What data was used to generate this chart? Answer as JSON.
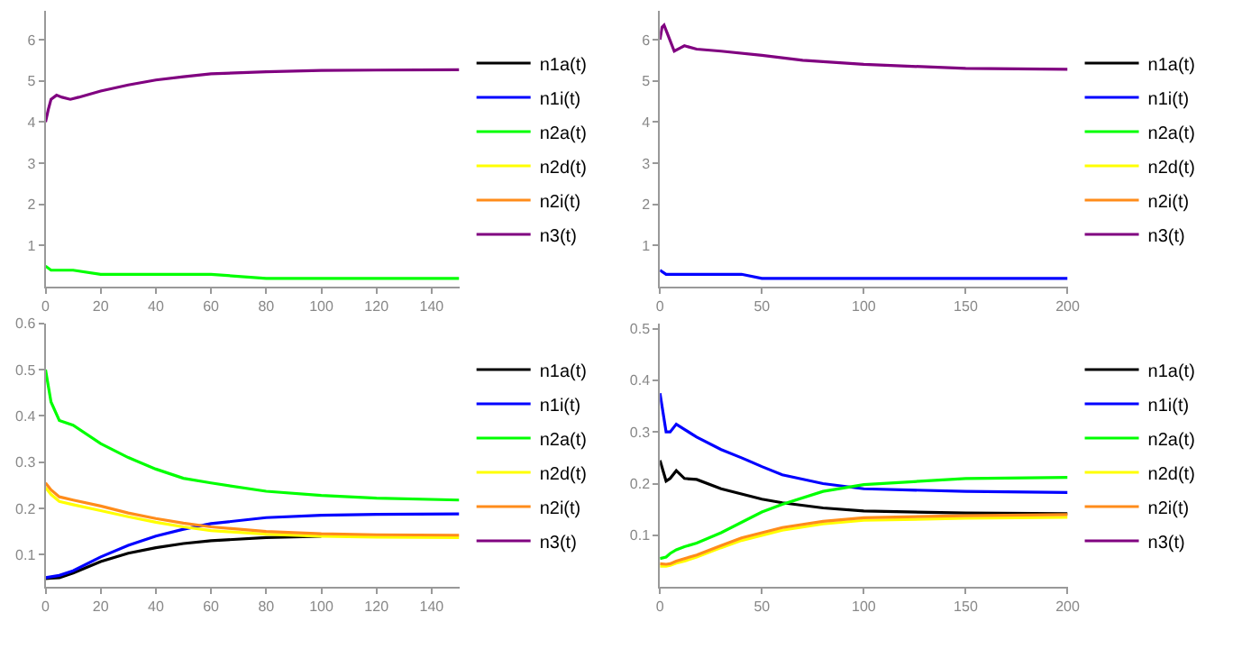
{
  "chart_data": [
    {
      "type": "line",
      "xlim": [
        0,
        150
      ],
      "xticks": [
        0,
        20,
        40,
        60,
        80,
        100,
        120,
        140
      ],
      "ylim": [
        0,
        6.7
      ],
      "yticks": [
        1,
        2,
        3,
        4,
        5,
        6
      ],
      "legend": "right",
      "line_style": "solid",
      "marker": "none",
      "x": [
        0,
        2,
        5,
        10,
        20,
        30,
        40,
        50,
        60,
        80,
        100,
        120,
        150
      ],
      "series": [
        {
          "name": "n1a(t)",
          "color": "#000000",
          "values": [
            null,
            null,
            null,
            null,
            null,
            null,
            null,
            null,
            null,
            null,
            null,
            null,
            null
          ]
        },
        {
          "name": "n1i(t)",
          "color": "#0000ff",
          "values": [
            null,
            null,
            null,
            null,
            null,
            null,
            null,
            null,
            null,
            null,
            null,
            null,
            null
          ]
        },
        {
          "name": "n2a(t)",
          "color": "#00ff00",
          "values": [
            0.5,
            0.4,
            0.4,
            0.4,
            0.3,
            0.3,
            0.3,
            0.3,
            0.3,
            0.2,
            0.2,
            0.2,
            0.2
          ]
        },
        {
          "name": "n2d(t)",
          "color": "#ffff00",
          "values": [
            null,
            null,
            null,
            null,
            null,
            null,
            null,
            null,
            null,
            null,
            null,
            null,
            null
          ]
        },
        {
          "name": "n2i(t)",
          "color": "#ff8c1a",
          "values": [
            null,
            null,
            null,
            null,
            null,
            null,
            null,
            null,
            null,
            null,
            null,
            null,
            null
          ]
        },
        {
          "name": "n3(t)",
          "color": "#800080",
          "x": [
            0,
            1,
            2,
            4,
            6,
            9,
            12,
            20,
            30,
            40,
            50,
            60,
            80,
            100,
            120,
            150
          ],
          "values": [
            4.0,
            4.3,
            4.55,
            4.65,
            4.6,
            4.55,
            4.6,
            4.75,
            4.9,
            5.02,
            5.1,
            5.17,
            5.22,
            5.25,
            5.26,
            5.27
          ]
        }
      ]
    },
    {
      "type": "line",
      "xlim": [
        0,
        200
      ],
      "xticks": [
        0,
        50,
        100,
        150,
        200
      ],
      "ylim": [
        0,
        6.7
      ],
      "yticks": [
        1,
        2,
        3,
        4,
        5,
        6
      ],
      "legend": "right",
      "line_style": "solid",
      "marker": "none",
      "x": [
        0,
        3,
        5,
        8,
        12,
        18,
        30,
        40,
        50,
        60,
        80,
        100,
        150,
        200
      ],
      "series": [
        {
          "name": "n1a(t)",
          "color": "#000000",
          "values": [
            null,
            null,
            null,
            null,
            null,
            null,
            null,
            null,
            null,
            null,
            null,
            null,
            null,
            null
          ]
        },
        {
          "name": "n1i(t)",
          "color": "#0000ff",
          "values": [
            0.4,
            0.3,
            0.3,
            0.3,
            0.3,
            0.3,
            0.3,
            0.3,
            0.2,
            0.2,
            0.2,
            0.2,
            0.2,
            0.2
          ]
        },
        {
          "name": "n2a(t)",
          "color": "#00ff00",
          "values": [
            null,
            null,
            null,
            null,
            null,
            null,
            null,
            null,
            null,
            null,
            null,
            null,
            null,
            null
          ]
        },
        {
          "name": "n2d(t)",
          "color": "#ffff00",
          "values": [
            null,
            null,
            null,
            null,
            null,
            null,
            null,
            null,
            null,
            null,
            null,
            null,
            null,
            null
          ]
        },
        {
          "name": "n2i(t)",
          "color": "#ff8c1a",
          "values": [
            null,
            null,
            null,
            null,
            null,
            null,
            null,
            null,
            null,
            null,
            null,
            null,
            null,
            null
          ]
        },
        {
          "name": "n3(t)",
          "color": "#800080",
          "x": [
            0,
            1,
            2,
            4,
            7,
            10,
            12,
            18,
            30,
            50,
            70,
            100,
            150,
            200
          ],
          "values": [
            6.0,
            6.3,
            6.35,
            6.1,
            5.72,
            5.8,
            5.85,
            5.77,
            5.72,
            5.62,
            5.5,
            5.4,
            5.3,
            5.28
          ]
        }
      ]
    },
    {
      "type": "line",
      "xlim": [
        0,
        150
      ],
      "xticks": [
        0,
        20,
        40,
        60,
        80,
        100,
        120,
        140
      ],
      "ylim": [
        0.03,
        0.6
      ],
      "yticks": [
        0.1,
        0.2,
        0.3,
        0.4,
        0.5,
        0.6
      ],
      "legend": "right",
      "line_style": "solid",
      "marker": "none",
      "x": [
        0,
        2,
        5,
        10,
        20,
        30,
        40,
        50,
        60,
        80,
        100,
        120,
        150
      ],
      "series": [
        {
          "name": "n1a(t)",
          "color": "#000000",
          "values": [
            0.048,
            0.049,
            0.05,
            0.06,
            0.085,
            0.103,
            0.115,
            0.124,
            0.13,
            0.137,
            0.14,
            null,
            null
          ]
        },
        {
          "name": "n1i(t)",
          "color": "#0000ff",
          "values": [
            0.05,
            0.052,
            0.055,
            0.065,
            0.095,
            0.12,
            0.14,
            0.155,
            0.167,
            0.18,
            0.185,
            0.187,
            0.188
          ]
        },
        {
          "name": "n2a(t)",
          "color": "#00ff00",
          "values": [
            0.5,
            0.43,
            0.39,
            0.38,
            0.34,
            0.31,
            0.285,
            0.265,
            0.255,
            0.237,
            0.228,
            0.222,
            0.218
          ]
        },
        {
          "name": "n2d(t)",
          "color": "#ffff00",
          "values": [
            0.245,
            0.23,
            0.215,
            0.208,
            0.195,
            0.182,
            0.17,
            0.16,
            0.152,
            0.144,
            0.14,
            0.138,
            0.137
          ]
        },
        {
          "name": "n2i(t)",
          "color": "#ff8c1a",
          "values": [
            0.255,
            0.24,
            0.225,
            0.218,
            0.205,
            0.19,
            0.178,
            0.168,
            0.16,
            0.15,
            0.145,
            0.143,
            0.142
          ]
        },
        {
          "name": "n3(t)",
          "color": "#800080",
          "values": [
            null,
            null,
            null,
            null,
            null,
            null,
            null,
            null,
            null,
            null,
            null,
            null,
            null
          ]
        }
      ]
    },
    {
      "type": "line",
      "xlim": [
        0,
        200
      ],
      "xticks": [
        0,
        50,
        100,
        150,
        200
      ],
      "ylim": [
        0,
        0.51
      ],
      "yticks": [
        0.1,
        0.2,
        0.3,
        0.4,
        0.5
      ],
      "legend": "right",
      "line_style": "solid",
      "marker": "none",
      "x": [
        0,
        3,
        5,
        8,
        12,
        18,
        30,
        40,
        50,
        60,
        80,
        100,
        150,
        200
      ],
      "series": [
        {
          "name": "n1a(t)",
          "color": "#000000",
          "values": [
            0.245,
            0.205,
            0.21,
            0.225,
            0.21,
            0.208,
            0.19,
            0.18,
            0.17,
            0.163,
            0.153,
            0.147,
            0.143,
            0.142
          ]
        },
        {
          "name": "n1i(t)",
          "color": "#0000ff",
          "values": [
            0.375,
            0.3,
            0.3,
            0.315,
            0.305,
            0.29,
            0.266,
            0.25,
            0.233,
            0.217,
            0.2,
            0.19,
            0.185,
            0.183
          ]
        },
        {
          "name": "n2a(t)",
          "color": "#00ff00",
          "values": [
            0.055,
            0.058,
            0.065,
            0.072,
            0.078,
            0.085,
            0.105,
            0.125,
            0.145,
            0.16,
            0.185,
            0.198,
            0.21,
            0.212
          ]
        },
        {
          "name": "n2d(t)",
          "color": "#ffff00",
          "values": [
            0.04,
            0.04,
            0.042,
            0.046,
            0.05,
            0.058,
            0.076,
            0.09,
            0.1,
            0.11,
            0.122,
            0.129,
            0.133,
            0.135
          ]
        },
        {
          "name": "n2i(t)",
          "color": "#ff8c1a",
          "values": [
            0.045,
            0.044,
            0.045,
            0.05,
            0.055,
            0.062,
            0.08,
            0.095,
            0.105,
            0.115,
            0.127,
            0.134,
            0.138,
            0.14
          ]
        },
        {
          "name": "n3(t)",
          "color": "#800080",
          "values": [
            null,
            null,
            null,
            null,
            null,
            null,
            null,
            null,
            null,
            null,
            null,
            null,
            null,
            null
          ]
        }
      ]
    }
  ]
}
